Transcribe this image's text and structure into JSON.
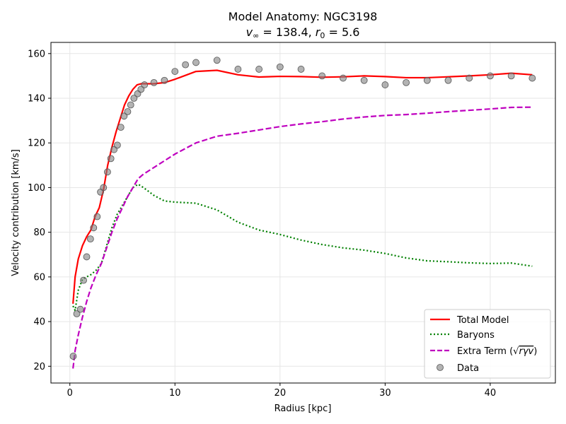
{
  "chart_data": {
    "type": "line",
    "title_line1": "Model Anatomy: NGC3198",
    "title_line2": "v∞ = 138.4, r0 = 5.6",
    "title_parts": {
      "v": "v",
      "inf": "∞",
      "eq1": " = 138.4, ",
      "r": "r",
      "zero": "0",
      "eq2": " = 5.6"
    },
    "xlabel": "Radius [kpc]",
    "ylabel": "Velocity contribution [km/s]",
    "xlim": [
      -1.8,
      46.2
    ],
    "ylim": [
      12.5,
      165
    ],
    "xticks": [
      0,
      10,
      20,
      30,
      40
    ],
    "yticks": [
      20,
      40,
      60,
      80,
      100,
      120,
      140,
      160
    ],
    "grid": true,
    "legend_position": "lower right",
    "legend": [
      {
        "key": "total",
        "label": "Total Model"
      },
      {
        "key": "baryons",
        "label": "Baryons"
      },
      {
        "key": "extra",
        "label": "Extra Term (√rγv)",
        "label_prefix": "Extra Term (",
        "label_sqrt": "√",
        "label_math": "rγv",
        "label_suffix": ")"
      },
      {
        "key": "data",
        "label": "Data"
      }
    ],
    "colors": {
      "total": "#ff0000",
      "baryons": "#008000",
      "extra": "#bf00bf",
      "data": "#808080",
      "data_edge": "#555555",
      "grid": "#e6e6e6"
    },
    "series": [
      {
        "name": "Total Model",
        "key": "total",
        "style": "solid",
        "x": [
          0.3,
          0.5,
          0.8,
          1.2,
          1.6,
          2.0,
          2.4,
          2.8,
          3.2,
          3.6,
          4.0,
          4.4,
          4.8,
          5.2,
          5.6,
          6.0,
          6.4,
          6.8,
          7.2,
          8,
          9,
          10,
          12,
          14,
          16,
          18,
          20,
          22,
          24,
          26,
          28,
          30,
          32,
          34,
          36,
          38,
          40,
          42,
          44
        ],
        "y": [
          48,
          60,
          68,
          74,
          78,
          81,
          87,
          91,
          99,
          110,
          118,
          125,
          131,
          137,
          141,
          144,
          146,
          146.5,
          146.5,
          146.5,
          147,
          148.5,
          152,
          152.5,
          150.5,
          149.5,
          149.8,
          149.7,
          149.4,
          149.6,
          150,
          149.7,
          149.2,
          149.2,
          149.6,
          150,
          150.5,
          151.2,
          150.5
        ]
      },
      {
        "name": "Baryons",
        "key": "baryons",
        "style": "dotted",
        "x": [
          0.3,
          0.5,
          0.8,
          1.2,
          1.6,
          2.0,
          2.5,
          3.0,
          3.5,
          4.0,
          4.5,
          5.0,
          5.5,
          6.0,
          6.5,
          7.0,
          8,
          9,
          10,
          12,
          14,
          16,
          18,
          20,
          22,
          24,
          26,
          28,
          30,
          32,
          34,
          36,
          38,
          40,
          42,
          44
        ],
        "y": [
          47,
          45,
          54,
          59,
          60,
          61,
          63,
          66,
          74,
          82,
          88,
          92,
          96,
          100,
          101.5,
          100,
          96.5,
          94,
          93.5,
          93,
          90,
          84.5,
          81,
          79,
          76.5,
          74.5,
          73,
          72,
          70.5,
          68.5,
          67.2,
          66.8,
          66.3,
          66,
          66.2,
          64.8
        ]
      },
      {
        "name": "Extra Term",
        "key": "extra",
        "style": "dashed",
        "x": [
          0.3,
          0.5,
          0.8,
          1.2,
          1.6,
          2.0,
          2.5,
          3.0,
          3.5,
          4.0,
          4.5,
          5.0,
          5.5,
          6.0,
          6.5,
          7.0,
          8,
          9,
          10,
          12,
          14,
          16,
          18,
          20,
          22,
          24,
          26,
          28,
          30,
          32,
          34,
          36,
          38,
          40,
          42,
          44
        ],
        "y": [
          19,
          27,
          34,
          42,
          49,
          55,
          61,
          66,
          73,
          80,
          86,
          91,
          96,
          100,
          104,
          106,
          109,
          112,
          115,
          120,
          123,
          124.3,
          125.8,
          127.3,
          128.5,
          129.5,
          130.7,
          131.6,
          132.3,
          132.7,
          133.3,
          134,
          134.6,
          135.2,
          135.9,
          136
        ]
      },
      {
        "name": "Data",
        "key": "data",
        "style": "markers",
        "x": [
          0.32,
          0.66,
          1.0,
          1.3,
          1.6,
          1.96,
          2.26,
          2.6,
          2.92,
          3.2,
          3.58,
          3.9,
          4.2,
          4.52,
          4.85,
          5.16,
          5.5,
          5.79,
          6.1,
          6.45,
          6.77,
          7.1,
          8,
          9,
          10,
          11,
          12,
          14,
          16,
          18,
          20,
          22,
          24,
          26,
          28,
          30,
          32,
          34,
          36,
          38,
          40,
          42,
          44
        ],
        "y": [
          24.5,
          43.5,
          45.5,
          58.5,
          69,
          77,
          82,
          87,
          98,
          100,
          107,
          113,
          117,
          119,
          127,
          132,
          134,
          137,
          140,
          142,
          144,
          146,
          147,
          148,
          152,
          155,
          156,
          157,
          153,
          153,
          154,
          153,
          150,
          149,
          148,
          146,
          147,
          148,
          148,
          149,
          150,
          150,
          149
        ]
      }
    ]
  }
}
